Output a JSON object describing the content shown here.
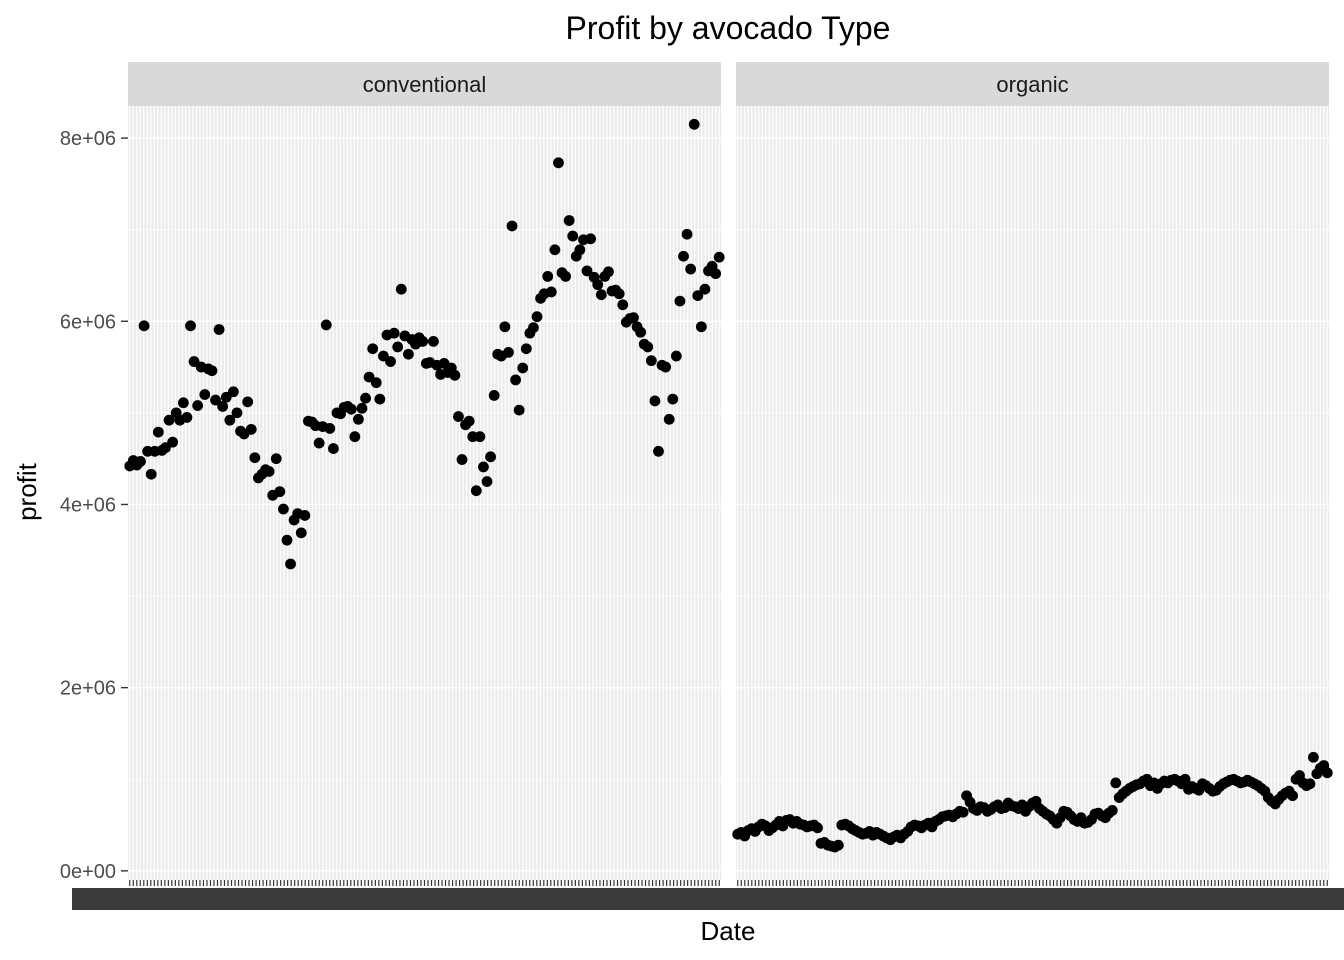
{
  "chart_data": {
    "type": "scatter",
    "title": "Profit by avocado Type",
    "xlabel": "Date",
    "ylabel": "profit",
    "ylim": [
      -100000,
      8350000
    ],
    "y_ticks": [
      0,
      2000000,
      4000000,
      6000000,
      8000000
    ],
    "y_tick_labels": [
      "0e+00",
      "2e+06",
      "4e+06",
      "6e+06",
      "8e+06"
    ],
    "x_axis": "discrete weekly dates, 169 levels, tick labels overplotted and unreadable",
    "x_level_count": 169,
    "grid": true,
    "point_color": "#000000",
    "panel_background": "#ebebeb",
    "strip_background": "#d9d9d9",
    "panels": [
      {
        "name": "conventional",
        "values": [
          4420000,
          4480000,
          4430000,
          4470000,
          5950000,
          4580000,
          4330000,
          4580000,
          4790000,
          4590000,
          4620000,
          4920000,
          4680000,
          5000000,
          4920000,
          5110000,
          4950000,
          5950000,
          5560000,
          5080000,
          5500000,
          5200000,
          5480000,
          5460000,
          5140000,
          5910000,
          5070000,
          5170000,
          4920000,
          5230000,
          5000000,
          4800000,
          4770000,
          5120000,
          4820000,
          4510000,
          4290000,
          4330000,
          4380000,
          4360000,
          4100000,
          4500000,
          4140000,
          3950000,
          3610000,
          3350000,
          3830000,
          3900000,
          3690000,
          3880000,
          4910000,
          4900000,
          4860000,
          4670000,
          4850000,
          5960000,
          4830000,
          4610000,
          5000000,
          4990000,
          5060000,
          5070000,
          5040000,
          4740000,
          4930000,
          5050000,
          5160000,
          5390000,
          5700000,
          5330000,
          5150000,
          5620000,
          5850000,
          5560000,
          5870000,
          5720000,
          6350000,
          5840000,
          5640000,
          5800000,
          5750000,
          5820000,
          5780000,
          5540000,
          5550000,
          5780000,
          5520000,
          5420000,
          5540000,
          5440000,
          5490000,
          5410000,
          4960000,
          4490000,
          4870000,
          4910000,
          4740000,
          4150000,
          4740000,
          4410000,
          4250000,
          4520000,
          5190000,
          5640000,
          5620000,
          5940000,
          5660000,
          7040000,
          5360000,
          5030000,
          5490000,
          5700000,
          5870000,
          5930000,
          6050000,
          6250000,
          6300000,
          6490000,
          6320000,
          6780000,
          7730000,
          6530000,
          6490000,
          7100000,
          6930000,
          6710000,
          6780000,
          6890000,
          6550000,
          6900000,
          6480000,
          6400000,
          6290000,
          6490000,
          6540000,
          6330000,
          6340000,
          6300000,
          6180000,
          5990000,
          6030000,
          6040000,
          5940000,
          5880000,
          5750000,
          5720000,
          5570000,
          5130000,
          4580000,
          5520000,
          5500000,
          4930000,
          5150000,
          5620000,
          6220000,
          6710000,
          6950000,
          6570000,
          8150000,
          6280000,
          5940000,
          6350000,
          6550000,
          6600000,
          6520000,
          6700000
        ]
      },
      {
        "name": "organic",
        "values": [
          400000,
          420000,
          380000,
          440000,
          460000,
          430000,
          480000,
          510000,
          490000,
          440000,
          470000,
          500000,
          540000,
          490000,
          550000,
          560000,
          520000,
          540000,
          510000,
          500000,
          480000,
          490000,
          500000,
          470000,
          300000,
          310000,
          280000,
          270000,
          260000,
          280000,
          500000,
          510000,
          490000,
          460000,
          440000,
          420000,
          400000,
          410000,
          430000,
          390000,
          420000,
          400000,
          380000,
          360000,
          340000,
          370000,
          390000,
          360000,
          400000,
          430000,
          480000,
          500000,
          490000,
          470000,
          500000,
          520000,
          480000,
          540000,
          560000,
          590000,
          600000,
          610000,
          590000,
          620000,
          650000,
          640000,
          820000,
          750000,
          680000,
          660000,
          700000,
          690000,
          650000,
          670000,
          700000,
          720000,
          680000,
          690000,
          740000,
          710000,
          700000,
          680000,
          720000,
          650000,
          700000,
          740000,
          760000,
          680000,
          650000,
          620000,
          600000,
          560000,
          520000,
          580000,
          650000,
          640000,
          600000,
          560000,
          540000,
          580000,
          520000,
          530000,
          560000,
          620000,
          630000,
          600000,
          580000,
          630000,
          660000,
          960000,
          800000,
          840000,
          870000,
          900000,
          920000,
          940000,
          950000,
          980000,
          1000000,
          930000,
          960000,
          900000,
          950000,
          980000,
          960000,
          990000,
          1000000,
          980000,
          950000,
          1000000,
          890000,
          920000,
          900000,
          880000,
          950000,
          930000,
          900000,
          870000,
          880000,
          920000,
          950000,
          970000,
          990000,
          1000000,
          980000,
          960000,
          970000,
          990000,
          970000,
          950000,
          930000,
          900000,
          870000,
          800000,
          760000,
          730000,
          780000,
          820000,
          850000,
          870000,
          820000,
          1000000,
          1040000,
          960000,
          930000,
          950000,
          1240000,
          1060000,
          1120000,
          1150000,
          1070000
        ]
      }
    ]
  }
}
